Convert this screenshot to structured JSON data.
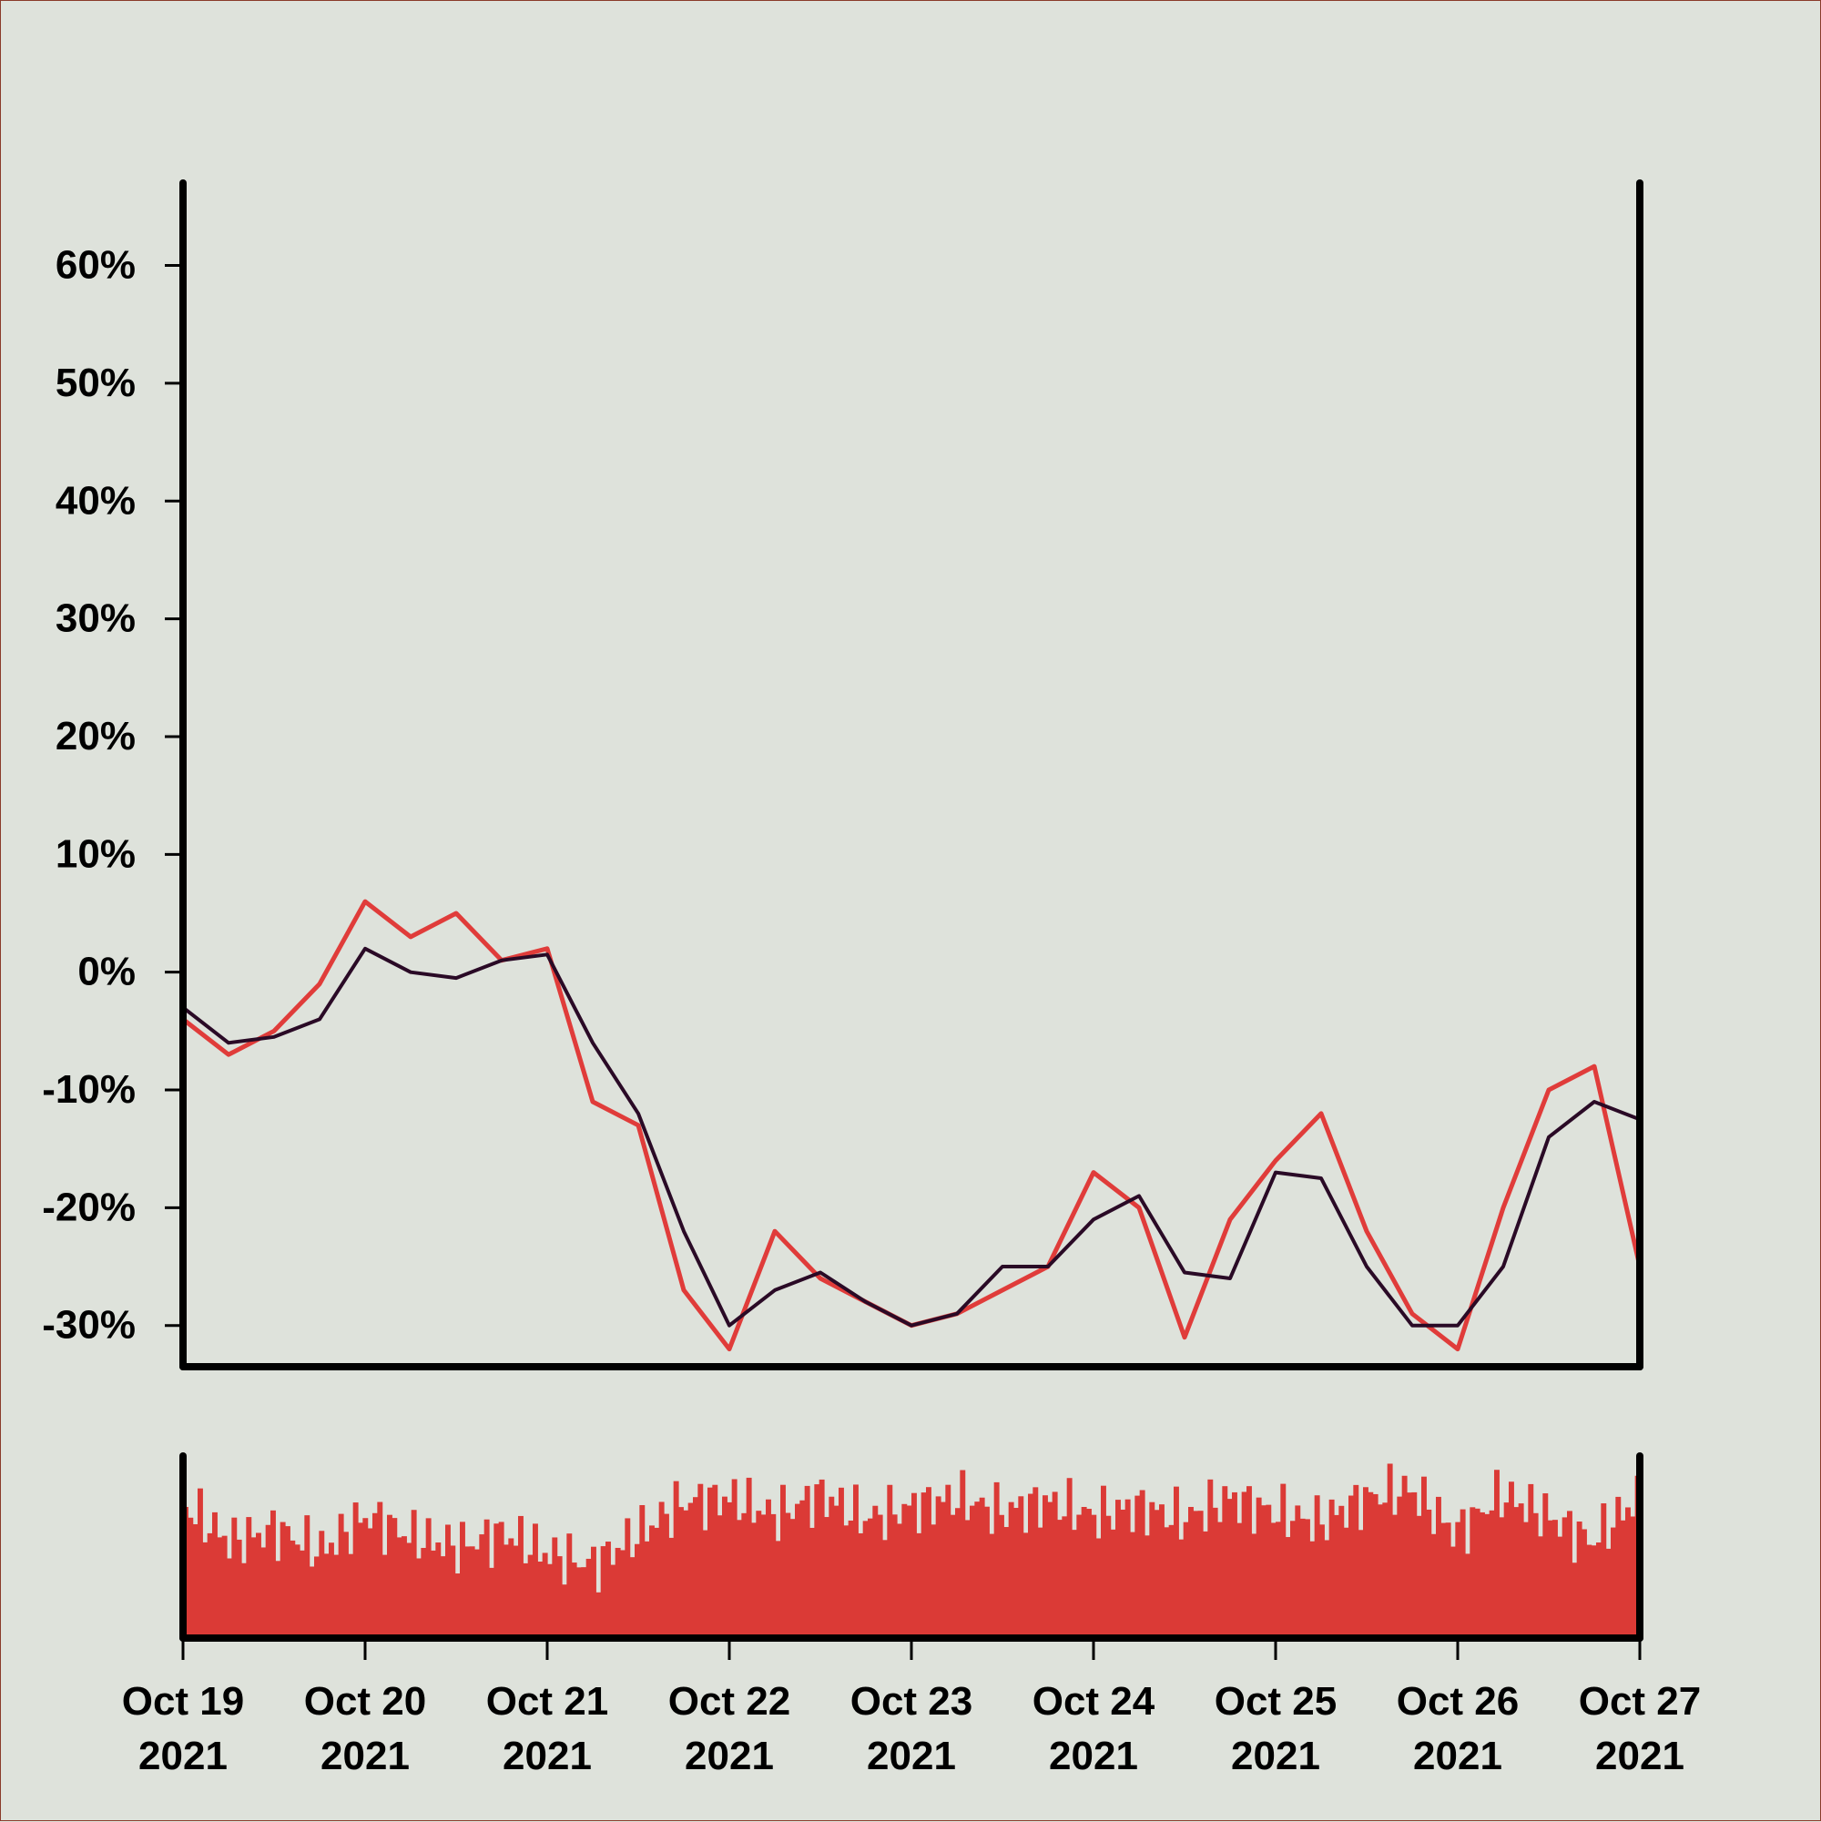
{
  "colors": {
    "background": "#dee2db",
    "price_line": "#e03c3a",
    "moving_average": "#2a0a26",
    "volume_bars": "#db3a36",
    "axis": "#000000"
  },
  "chart_data": {
    "type": "line",
    "title": "",
    "xlabel": "",
    "ylabel": "",
    "grid": false,
    "legend": "none",
    "y_ticks": [
      "60%",
      "50%",
      "40%",
      "30%",
      "20%",
      "10%",
      "0%",
      "-10%",
      "-20%",
      "-30%"
    ],
    "y_tick_values": [
      60,
      50,
      40,
      30,
      20,
      10,
      0,
      -10,
      -20,
      -30
    ],
    "ylim": [
      -33.5,
      67
    ],
    "x_ticks": [
      {
        "date": "Oct 19",
        "year": "2021"
      },
      {
        "date": "Oct 20",
        "year": "2021"
      },
      {
        "date": "Oct 21",
        "year": "2021"
      },
      {
        "date": "Oct 22",
        "year": "2021"
      },
      {
        "date": "Oct 23",
        "year": "2021"
      },
      {
        "date": "Oct 24",
        "year": "2021"
      },
      {
        "date": "Oct 25",
        "year": "2021"
      },
      {
        "date": "Oct 26",
        "year": "2021"
      },
      {
        "date": "Oct 27",
        "year": "2021"
      }
    ],
    "xlim": [
      "2021-10-19",
      "2021-10-27"
    ],
    "series": [
      {
        "role": "price",
        "x": [
          "2021-10-19T00:00",
          "2021-10-19T06:00",
          "2021-10-19T12:00",
          "2021-10-19T18:00",
          "2021-10-20T00:00",
          "2021-10-20T06:00",
          "2021-10-20T12:00",
          "2021-10-20T18:00",
          "2021-10-21T00:00",
          "2021-10-21T06:00",
          "2021-10-21T12:00",
          "2021-10-21T18:00",
          "2021-10-22T00:00",
          "2021-10-22T06:00",
          "2021-10-22T12:00",
          "2021-10-22T18:00",
          "2021-10-23T00:00",
          "2021-10-23T06:00",
          "2021-10-23T12:00",
          "2021-10-23T18:00",
          "2021-10-24T00:00",
          "2021-10-24T06:00",
          "2021-10-24T12:00",
          "2021-10-24T18:00",
          "2021-10-25T00:00",
          "2021-10-25T06:00",
          "2021-10-25T12:00",
          "2021-10-25T18:00",
          "2021-10-26T00:00",
          "2021-10-26T06:00",
          "2021-10-26T12:00",
          "2021-10-26T18:00",
          "2021-10-27T00:00"
        ],
        "y": [
          -4,
          -7,
          -5,
          -1,
          6,
          3,
          5,
          1,
          2,
          -11,
          -13,
          -27,
          -32,
          -22,
          -26,
          -28,
          -30,
          -29,
          -27,
          -25,
          -17,
          -20,
          -31,
          -21,
          -16,
          -12,
          -22,
          -29,
          -32,
          -20,
          -10,
          -8,
          -25
        ]
      },
      {
        "role": "moving_average",
        "x": [
          "2021-10-19T00:00",
          "2021-10-19T06:00",
          "2021-10-19T12:00",
          "2021-10-19T18:00",
          "2021-10-20T00:00",
          "2021-10-20T06:00",
          "2021-10-20T12:00",
          "2021-10-20T18:00",
          "2021-10-21T00:00",
          "2021-10-21T06:00",
          "2021-10-21T12:00",
          "2021-10-21T18:00",
          "2021-10-22T00:00",
          "2021-10-22T06:00",
          "2021-10-22T12:00",
          "2021-10-22T18:00",
          "2021-10-23T00:00",
          "2021-10-23T06:00",
          "2021-10-23T12:00",
          "2021-10-23T18:00",
          "2021-10-24T00:00",
          "2021-10-24T06:00",
          "2021-10-24T12:00",
          "2021-10-24T18:00",
          "2021-10-25T00:00",
          "2021-10-25T06:00",
          "2021-10-25T12:00",
          "2021-10-25T18:00",
          "2021-10-26T00:00",
          "2021-10-26T06:00",
          "2021-10-26T12:00",
          "2021-10-26T18:00",
          "2021-10-27T00:00"
        ],
        "y": [
          -3,
          -6,
          -5.5,
          -4,
          2,
          0,
          -0.5,
          1,
          1.5,
          -6,
          -12,
          -22,
          -30,
          -27,
          -25.5,
          -28,
          -30,
          -29,
          -25,
          -25,
          -21,
          -19,
          -25.5,
          -26,
          -17,
          -17.5,
          -25,
          -30,
          -30,
          -25,
          -14,
          -11,
          -12.5
        ]
      }
    ],
    "volume": {
      "relative_values": [
        0.75,
        0.55,
        0.62,
        0.5,
        0.7,
        0.58,
        0.52,
        0.6,
        0.48,
        0.42,
        0.6,
        0.78,
        0.8,
        0.7,
        0.82,
        0.68,
        0.75,
        0.8,
        0.72,
        0.78,
        0.7,
        0.75,
        0.68,
        0.8,
        0.72,
        0.66,
        0.8,
        0.85,
        0.6,
        0.82,
        0.7,
        0.55,
        0.8
      ]
    }
  }
}
